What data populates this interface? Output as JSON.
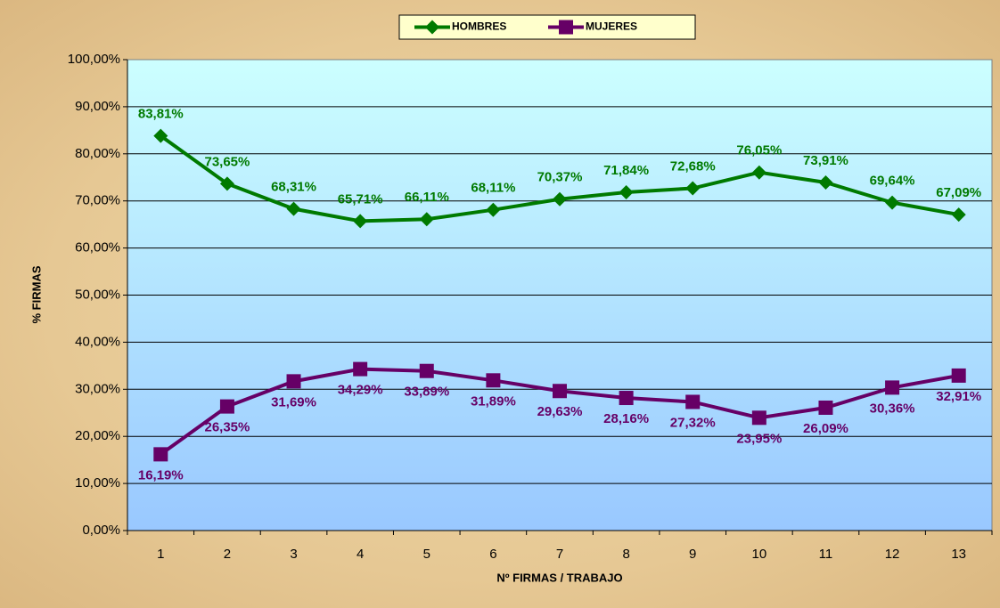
{
  "chart_data": {
    "type": "line",
    "xlabel": "Nº FIRMAS / TRABAJO",
    "ylabel": "% FIRMAS",
    "categories": [
      "1",
      "2",
      "3",
      "4",
      "5",
      "6",
      "7",
      "8",
      "9",
      "10",
      "11",
      "12",
      "13"
    ],
    "series": [
      {
        "name": "HOMBRES",
        "color": "#007a00",
        "marker": "diamond",
        "values": [
          83.81,
          73.65,
          68.31,
          65.71,
          66.11,
          68.11,
          70.37,
          71.84,
          72.68,
          76.05,
          73.91,
          69.64,
          67.09
        ],
        "value_labels": [
          "83,81%",
          "73,65%",
          "68,31%",
          "65,71%",
          "66,11%",
          "68,11%",
          "70,37%",
          "71,84%",
          "72,68%",
          "76,05%",
          "73,91%",
          "69,64%",
          "67,09%"
        ]
      },
      {
        "name": "MUJERES",
        "color": "#660066",
        "marker": "square",
        "values": [
          16.19,
          26.35,
          31.69,
          34.29,
          33.89,
          31.89,
          29.63,
          28.16,
          27.32,
          23.95,
          26.09,
          30.36,
          32.91
        ],
        "value_labels": [
          "16,19%",
          "26,35%",
          "31,69%",
          "34,29%",
          "33,89%",
          "31,89%",
          "29,63%",
          "28,16%",
          "27,32%",
          "23,95%",
          "26,09%",
          "30,36%",
          "32,91%"
        ]
      }
    ],
    "ylim": [
      0,
      100
    ],
    "yticks": [
      {
        "value": 0,
        "label": "0,00%"
      },
      {
        "value": 10,
        "label": "10,00%"
      },
      {
        "value": 20,
        "label": "20,00%"
      },
      {
        "value": 30,
        "label": "30,00%"
      },
      {
        "value": 40,
        "label": "40,00%"
      },
      {
        "value": 50,
        "label": "50,00%"
      },
      {
        "value": 60,
        "label": "60,00%"
      },
      {
        "value": 70,
        "label": "70,00%"
      },
      {
        "value": 80,
        "label": "80,00%"
      },
      {
        "value": 90,
        "label": "90,00%"
      },
      {
        "value": 100,
        "label": "100,00%"
      }
    ],
    "grid": true,
    "legend": "top"
  }
}
